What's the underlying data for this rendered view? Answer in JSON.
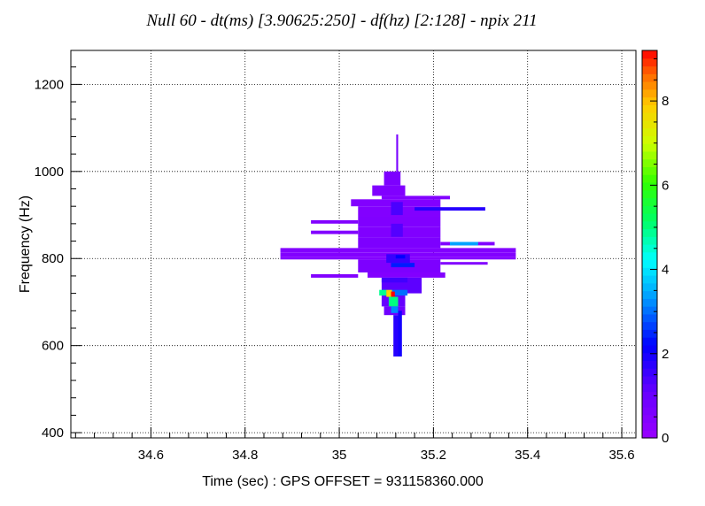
{
  "chart_data": {
    "type": "heatmap",
    "title": "Null  60 - dt(ms) [3.90625:250] - df(hz) [2:128] - npix 211",
    "xlabel": "Time (sec) : GPS OFFSET = 931158360.000",
    "ylabel": "Frequency (Hz)",
    "xlim": [
      34.43,
      35.63
    ],
    "ylim": [
      388,
      1278
    ],
    "x_ticks": [
      34.6,
      34.8,
      35,
      35.2,
      35.4,
      35.6
    ],
    "x_tick_labels": [
      "34.6",
      "34.8",
      "35",
      "35.2",
      "35.4",
      "35.6"
    ],
    "y_ticks": [
      400,
      600,
      800,
      1000,
      1200
    ],
    "y_tick_labels": [
      "400",
      "600",
      "800",
      "1000",
      "1200"
    ],
    "grid": true,
    "colorbar": {
      "min": 0,
      "max": 9.2,
      "ticks": [
        0,
        2,
        4,
        6,
        8
      ],
      "tick_labels": [
        "0",
        "2",
        "4",
        "6",
        "8"
      ]
    },
    "cells": [
      {
        "t0": 34.875,
        "t1": 35.375,
        "f0": 814,
        "f1": 824,
        "v": 0.5
      },
      {
        "t0": 34.875,
        "t1": 35.375,
        "f0": 804,
        "f1": 814,
        "v": 0.5
      },
      {
        "t0": 34.875,
        "t1": 35.375,
        "f0": 798,
        "f1": 804,
        "v": 0.45
      },
      {
        "t0": 34.94,
        "t1": 35.04,
        "f0": 880,
        "f1": 888,
        "v": 0.5
      },
      {
        "t0": 34.94,
        "t1": 35.04,
        "f0": 856,
        "f1": 864,
        "v": 0.5
      },
      {
        "t0": 34.94,
        "t1": 35.04,
        "f0": 756,
        "f1": 764,
        "v": 0.5
      },
      {
        "t0": 35.025,
        "t1": 35.215,
        "f0": 920,
        "f1": 936,
        "v": 0.5
      },
      {
        "t0": 35.04,
        "t1": 35.215,
        "f0": 896,
        "f1": 920,
        "v": 0.5
      },
      {
        "t0": 35.04,
        "t1": 35.215,
        "f0": 872,
        "f1": 896,
        "v": 0.55
      },
      {
        "t0": 35.04,
        "t1": 35.215,
        "f0": 848,
        "f1": 872,
        "v": 0.55
      },
      {
        "t0": 35.04,
        "t1": 35.215,
        "f0": 824,
        "f1": 848,
        "v": 0.6
      },
      {
        "t0": 35.04,
        "t1": 35.215,
        "f0": 768,
        "f1": 798,
        "v": 0.6
      },
      {
        "t0": 35.06,
        "t1": 35.225,
        "f0": 756,
        "f1": 768,
        "v": 0.5
      },
      {
        "t0": 35.215,
        "t1": 35.33,
        "f0": 830,
        "f1": 838,
        "v": 0.55
      },
      {
        "t0": 35.215,
        "t1": 35.315,
        "f0": 786,
        "f1": 792,
        "v": 0.5
      },
      {
        "t0": 35.235,
        "t1": 35.295,
        "f0": 830,
        "f1": 838,
        "v": 3.4
      },
      {
        "t0": 35.09,
        "t1": 35.235,
        "f0": 936,
        "f1": 944,
        "v": 0.5
      },
      {
        "t0": 35.16,
        "t1": 35.31,
        "f0": 910,
        "f1": 918,
        "v": 1.8
      },
      {
        "t0": 35.07,
        "t1": 35.14,
        "f0": 944,
        "f1": 968,
        "v": 0.55
      },
      {
        "t0": 35.095,
        "t1": 35.13,
        "f0": 968,
        "f1": 1000,
        "v": 0.6
      },
      {
        "t0": 35.121,
        "t1": 35.125,
        "f0": 1000,
        "f1": 1085,
        "v": 0.7
      },
      {
        "t0": 35.11,
        "t1": 35.135,
        "f0": 900,
        "f1": 930,
        "v": 1.4
      },
      {
        "t0": 35.11,
        "t1": 35.135,
        "f0": 850,
        "f1": 880,
        "v": 1.3
      },
      {
        "t0": 35.1,
        "t1": 35.15,
        "f0": 790,
        "f1": 810,
        "v": 1.6
      },
      {
        "t0": 35.11,
        "t1": 35.16,
        "f0": 780,
        "f1": 790,
        "v": 2.4
      },
      {
        "t0": 35.12,
        "t1": 35.14,
        "f0": 800,
        "f1": 808,
        "v": 2.2
      },
      {
        "t0": 35.09,
        "t1": 35.175,
        "f0": 720,
        "f1": 756,
        "v": 1.2
      },
      {
        "t0": 35.09,
        "t1": 35.145,
        "f0": 745,
        "f1": 756,
        "v": 1.5
      },
      {
        "t0": 35.09,
        "t1": 35.14,
        "f0": 690,
        "f1": 720,
        "v": 1.1
      },
      {
        "t0": 35.095,
        "t1": 35.14,
        "f0": 670,
        "f1": 690,
        "v": 0.9
      },
      {
        "t0": 35.09,
        "t1": 35.145,
        "f0": 715,
        "f1": 728,
        "v": 3.0
      },
      {
        "t0": 35.085,
        "t1": 35.1,
        "f0": 715,
        "f1": 728,
        "v": 4.9
      },
      {
        "t0": 35.1,
        "t1": 35.112,
        "f0": 712,
        "f1": 728,
        "v": 7.8
      },
      {
        "t0": 35.11,
        "t1": 35.118,
        "f0": 712,
        "f1": 724,
        "v": 9.2
      },
      {
        "t0": 35.105,
        "t1": 35.125,
        "f0": 690,
        "f1": 712,
        "v": 5.0
      },
      {
        "t0": 35.11,
        "t1": 35.125,
        "f0": 675,
        "f1": 690,
        "v": 3.2
      },
      {
        "t0": 35.115,
        "t1": 35.13,
        "f0": 575,
        "f1": 670,
        "v": 1.8
      },
      {
        "t0": 35.125,
        "t1": 35.133,
        "f0": 575,
        "f1": 680,
        "v": 2.0
      }
    ]
  }
}
